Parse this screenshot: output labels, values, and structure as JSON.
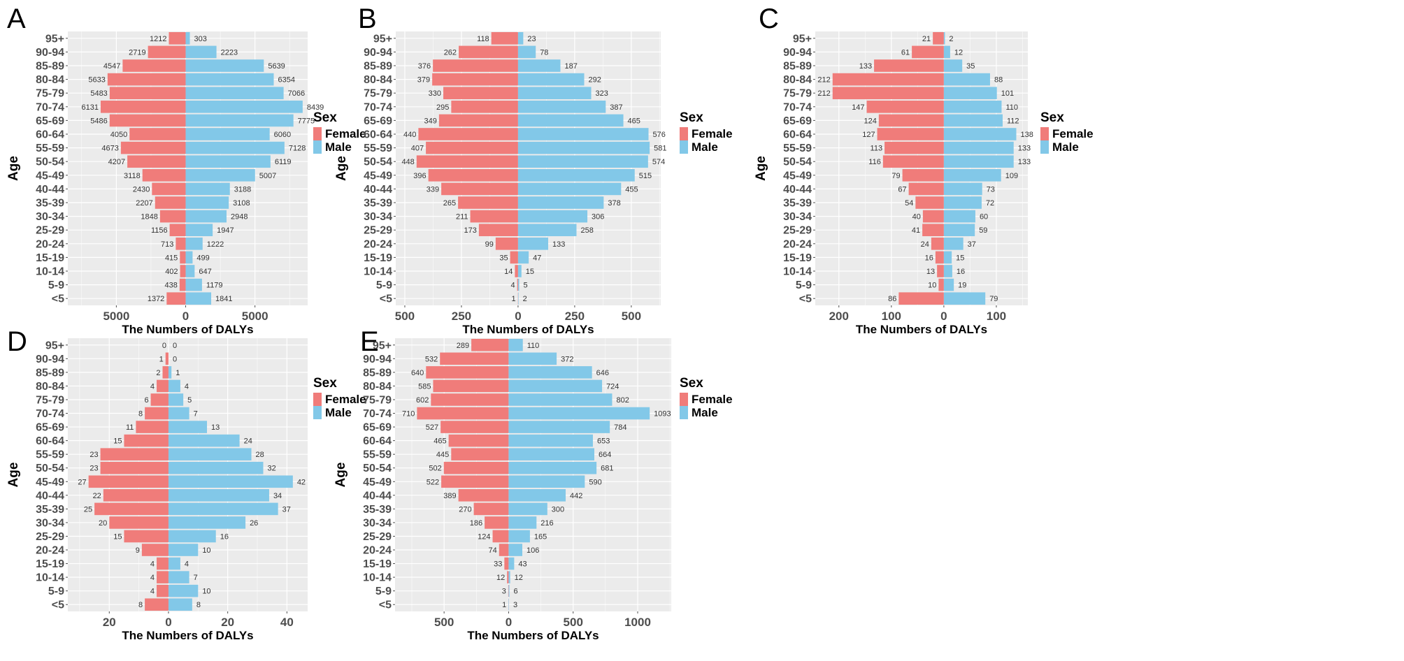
{
  "figure": {
    "age_groups": [
      "95+",
      "90-94",
      "85-89",
      "80-84",
      "75-79",
      "70-74",
      "65-69",
      "60-64",
      "55-59",
      "50-54",
      "45-49",
      "40-44",
      "35-39",
      "30-34",
      "25-29",
      "20-24",
      "15-19",
      "10-14",
      "5-9",
      "<5"
    ],
    "colors": {
      "female": "#F07C7A",
      "male": "#82C8E8",
      "panel_bg": "#EBEBEB",
      "grid": "#FFFFFF"
    }
  },
  "chart_data": [
    {
      "panel": "A",
      "type": "bar",
      "orientation": "horizontal-pyramid",
      "xlabel": "The Numbers of DALYs",
      "ylabel": "Age",
      "categories": [
        "95+",
        "90-94",
        "85-89",
        "80-84",
        "75-79",
        "70-74",
        "65-69",
        "60-64",
        "55-59",
        "50-54",
        "45-49",
        "40-44",
        "35-39",
        "30-34",
        "25-29",
        "20-24",
        "15-19",
        "10-14",
        "5-9",
        "<5"
      ],
      "series": [
        {
          "name": "Female",
          "values": [
            1212,
            2719,
            4547,
            5633,
            5483,
            6131,
            5486,
            4050,
            4673,
            4207,
            3118,
            2430,
            2207,
            1848,
            1156,
            713,
            415,
            402,
            438,
            1372
          ]
        },
        {
          "name": "Male",
          "values": [
            303,
            2223,
            5639,
            6354,
            7066,
            8439,
            7775,
            6060,
            7128,
            6119,
            5007,
            3188,
            3108,
            2948,
            1947,
            1222,
            499,
            647,
            1179,
            1841
          ]
        }
      ],
      "xlim": [
        -8500,
        8800
      ],
      "xticks": [
        -5000,
        0,
        5000
      ],
      "xtick_labels": [
        "5000",
        "0",
        "5000"
      ],
      "legend": {
        "title": "Sex",
        "entries": [
          "Female",
          "Male"
        ],
        "position": "right"
      }
    },
    {
      "panel": "B",
      "type": "bar",
      "orientation": "horizontal-pyramid",
      "xlabel": "The Numbers of DALYs",
      "ylabel": "Age",
      "categories": [
        "95+",
        "90-94",
        "85-89",
        "80-84",
        "75-79",
        "70-74",
        "65-69",
        "60-64",
        "55-59",
        "50-54",
        "45-49",
        "40-44",
        "35-39",
        "30-34",
        "25-29",
        "20-24",
        "15-19",
        "10-14",
        "5-9",
        "<5"
      ],
      "series": [
        {
          "name": "Female",
          "values": [
            118,
            262,
            376,
            379,
            330,
            295,
            349,
            440,
            407,
            448,
            396,
            339,
            265,
            211,
            173,
            99,
            35,
            14,
            4,
            1
          ]
        },
        {
          "name": "Male",
          "values": [
            23,
            78,
            187,
            292,
            323,
            387,
            465,
            576,
            581,
            574,
            515,
            455,
            378,
            306,
            258,
            133,
            47,
            15,
            5,
            2
          ]
        }
      ],
      "xlim": [
        -540,
        630
      ],
      "xticks": [
        -500,
        -250,
        0,
        250,
        500
      ],
      "xtick_labels": [
        "500",
        "250",
        "0",
        "250",
        "500"
      ],
      "legend": {
        "title": "Sex",
        "entries": [
          "Female",
          "Male"
        ],
        "position": "right"
      }
    },
    {
      "panel": "C",
      "type": "bar",
      "orientation": "horizontal-pyramid",
      "xlabel": "The Numbers of DALYs",
      "ylabel": "Age",
      "categories": [
        "95+",
        "90-94",
        "85-89",
        "80-84",
        "75-79",
        "70-74",
        "65-69",
        "60-64",
        "55-59",
        "50-54",
        "45-49",
        "40-44",
        "35-39",
        "30-34",
        "25-29",
        "20-24",
        "15-19",
        "10-14",
        "5-9",
        "<5"
      ],
      "series": [
        {
          "name": "Female",
          "values": [
            21,
            61,
            133,
            212,
            212,
            147,
            124,
            127,
            113,
            116,
            79,
            67,
            54,
            40,
            41,
            24,
            16,
            13,
            10,
            86
          ]
        },
        {
          "name": "Male",
          "values": [
            2,
            12,
            35,
            88,
            101,
            110,
            112,
            138,
            133,
            133,
            109,
            73,
            72,
            60,
            59,
            37,
            15,
            16,
            19,
            79
          ]
        }
      ],
      "xlim": [
        -245,
        160
      ],
      "xticks": [
        -200,
        -100,
        0,
        100
      ],
      "xtick_labels": [
        "200",
        "100",
        "0",
        "100"
      ],
      "legend": {
        "title": "Sex",
        "entries": [
          "Female",
          "Male"
        ],
        "position": "right"
      }
    },
    {
      "panel": "D",
      "type": "bar",
      "orientation": "horizontal-pyramid",
      "xlabel": "The Numbers of DALYs",
      "ylabel": "Age",
      "categories": [
        "95+",
        "90-94",
        "85-89",
        "80-84",
        "75-79",
        "70-74",
        "65-69",
        "60-64",
        "55-59",
        "50-54",
        "45-49",
        "40-44",
        "35-39",
        "30-34",
        "25-29",
        "20-24",
        "15-19",
        "10-14",
        "5-9",
        "<5"
      ],
      "series": [
        {
          "name": "Female",
          "values": [
            0,
            1,
            2,
            4,
            6,
            8,
            11,
            15,
            23,
            23,
            27,
            22,
            25,
            20,
            15,
            9,
            4,
            4,
            4,
            8
          ]
        },
        {
          "name": "Male",
          "values": [
            0,
            0,
            1,
            4,
            5,
            7,
            13,
            24,
            28,
            32,
            42,
            34,
            37,
            26,
            16,
            10,
            4,
            7,
            10,
            8
          ]
        }
      ],
      "xlim": [
        -34,
        47
      ],
      "xticks": [
        -20,
        0,
        20,
        40
      ],
      "xtick_labels": [
        "20",
        "0",
        "20",
        "40"
      ],
      "legend": {
        "title": "Sex",
        "entries": [
          "Female",
          "Male"
        ],
        "position": "right"
      }
    },
    {
      "panel": "E",
      "type": "bar",
      "orientation": "horizontal-pyramid",
      "xlabel": "The Numbers of DALYs",
      "ylabel": "Age",
      "categories": [
        "95+",
        "90-94",
        "85-89",
        "80-84",
        "75-79",
        "70-74",
        "65-69",
        "60-64",
        "55-59",
        "50-54",
        "45-49",
        "40-44",
        "35-39",
        "30-34",
        "25-29",
        "20-24",
        "15-19",
        "10-14",
        "5-9",
        "<5"
      ],
      "series": [
        {
          "name": "Female",
          "values": [
            289,
            532,
            640,
            585,
            602,
            710,
            527,
            465,
            445,
            502,
            522,
            389,
            270,
            186,
            124,
            74,
            33,
            12,
            3,
            1
          ]
        },
        {
          "name": "Male",
          "values": [
            110,
            372,
            646,
            724,
            802,
            1093,
            784,
            653,
            664,
            681,
            590,
            442,
            300,
            216,
            165,
            106,
            43,
            12,
            6,
            3
          ]
        }
      ],
      "xlim": [
        -880,
        1260
      ],
      "xticks": [
        -500,
        0,
        500,
        1000
      ],
      "xtick_labels": [
        "500",
        "0",
        "500",
        "1000"
      ],
      "legend": {
        "title": "Sex",
        "entries": [
          "Female",
          "Male"
        ],
        "position": "right"
      }
    }
  ]
}
